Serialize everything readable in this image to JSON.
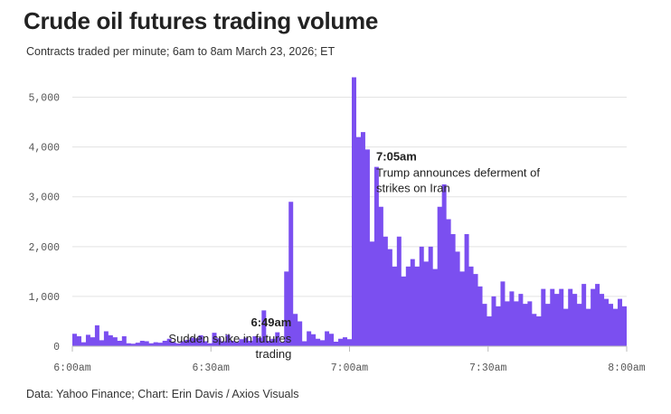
{
  "chart_data": {
    "type": "area",
    "title": "Crude oil futures trading volume",
    "subtitle": "Contracts traded per minute; 6am to 8am March 23, 2026; ET",
    "source": "Data: Yahoo Finance; Chart: Erin Davis / Axios Visuals",
    "xlabel": "",
    "ylabel": "",
    "ylim": [
      0,
      5500
    ],
    "xlim": [
      0,
      120
    ],
    "grid": true,
    "color": "#7b4ff0",
    "y_ticks": [
      {
        "value": 0,
        "label": "0"
      },
      {
        "value": 1000,
        "label": "1,000"
      },
      {
        "value": 2000,
        "label": "2,000"
      },
      {
        "value": 3000,
        "label": "3,000"
      },
      {
        "value": 4000,
        "label": "4,000"
      },
      {
        "value": 5000,
        "label": "5,000"
      }
    ],
    "x_ticks": [
      {
        "value": 0,
        "label": "6:00am"
      },
      {
        "value": 30,
        "label": "6:30am"
      },
      {
        "value": 60,
        "label": "7:00am"
      },
      {
        "value": 90,
        "label": "7:30am"
      },
      {
        "value": 120,
        "label": "8:00am"
      }
    ],
    "series": [
      {
        "values": [
          250,
          200,
          80,
          230,
          180,
          420,
          120,
          300,
          220,
          180,
          110,
          200,
          60,
          50,
          70,
          110,
          100,
          60,
          80,
          70,
          110,
          150,
          80,
          60,
          100,
          130,
          170,
          160,
          220,
          100,
          60,
          270,
          160,
          100,
          230,
          110,
          80,
          140,
          170,
          110,
          200,
          170,
          720,
          110,
          150,
          280,
          80,
          1500,
          2900,
          650,
          500,
          100,
          300,
          240,
          150,
          120,
          300,
          250,
          90,
          150,
          180,
          140,
          5400,
          4200,
          4300,
          3950,
          2100,
          3600,
          2800,
          2200,
          1950,
          1600,
          2200,
          1400,
          1600,
          1750,
          1600,
          2000,
          1700,
          2000,
          1550,
          2800,
          3250,
          2550,
          2250,
          1900,
          1500,
          2250,
          1600,
          1450,
          1200,
          850,
          600,
          1000,
          800,
          1300,
          900,
          1100,
          900,
          1050,
          850,
          900,
          650,
          600,
          1150,
          850,
          1150,
          1050,
          1150,
          750,
          1150,
          1050,
          850,
          1250,
          750,
          1150,
          1250,
          1050,
          950,
          850,
          750,
          950,
          800
        ]
      }
    ],
    "annotations": [
      {
        "x": 49,
        "time": "6:49am",
        "lines": [
          "Sudden spike in futures",
          "trading"
        ],
        "align": "right"
      },
      {
        "x": 65,
        "time": "7:05am",
        "lines": [
          "Trump announces deferment of",
          "strikes on Iran"
        ],
        "align": "left"
      }
    ]
  }
}
